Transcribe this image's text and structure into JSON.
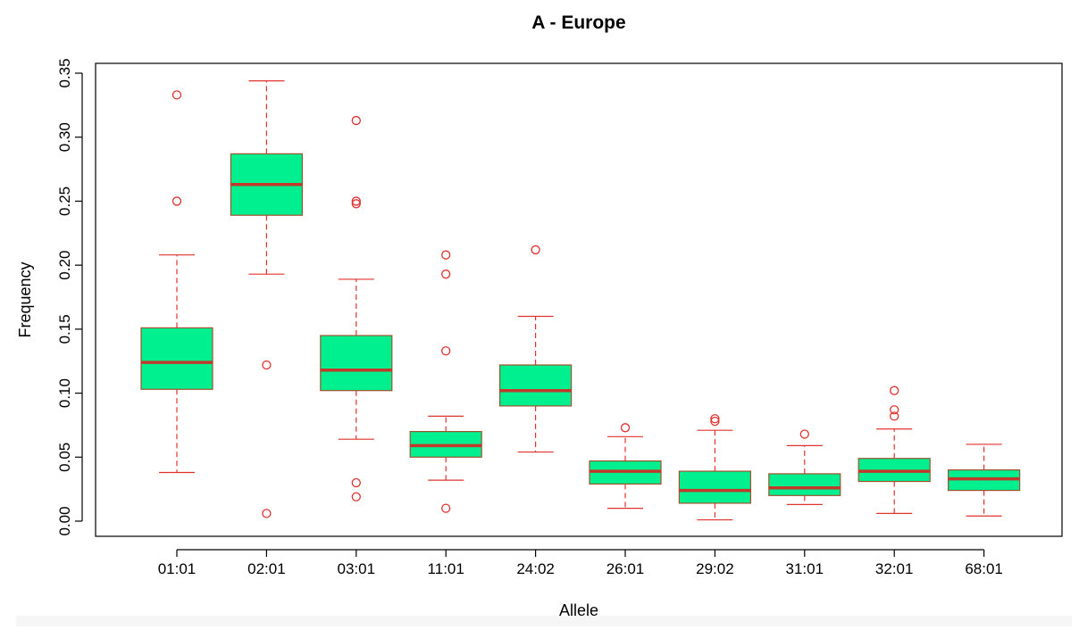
{
  "chart_data": {
    "type": "box",
    "title": "A - Europe",
    "xlabel": "Allele",
    "ylabel": "Frequency",
    "ylim": [
      -0.01,
      0.355
    ],
    "yticks": [
      "0.00",
      "0.05",
      "0.10",
      "0.15",
      "0.20",
      "0.25",
      "0.30",
      "0.35"
    ],
    "categories": [
      "01:01",
      "02:01",
      "03:01",
      "11:01",
      "24:02",
      "26:01",
      "29:02",
      "31:01",
      "32:01",
      "68:01"
    ],
    "boxes": [
      {
        "lower_whisker": 0.038,
        "q1": 0.103,
        "median": 0.124,
        "q3": 0.151,
        "upper_whisker": 0.208,
        "outliers": [
          0.25,
          0.333
        ]
      },
      {
        "lower_whisker": 0.193,
        "q1": 0.239,
        "median": 0.263,
        "q3": 0.287,
        "upper_whisker": 0.344,
        "outliers": [
          0.006,
          0.122
        ]
      },
      {
        "lower_whisker": 0.064,
        "q1": 0.102,
        "median": 0.118,
        "q3": 0.145,
        "upper_whisker": 0.189,
        "outliers": [
          0.019,
          0.03,
          0.248,
          0.25,
          0.313
        ]
      },
      {
        "lower_whisker": 0.032,
        "q1": 0.05,
        "median": 0.059,
        "q3": 0.07,
        "upper_whisker": 0.082,
        "outliers": [
          0.01,
          0.133,
          0.193,
          0.208
        ]
      },
      {
        "lower_whisker": 0.054,
        "q1": 0.09,
        "median": 0.102,
        "q3": 0.122,
        "upper_whisker": 0.16,
        "outliers": [
          0.212
        ]
      },
      {
        "lower_whisker": 0.01,
        "q1": 0.029,
        "median": 0.039,
        "q3": 0.047,
        "upper_whisker": 0.066,
        "outliers": [
          0.073
        ]
      },
      {
        "lower_whisker": 0.001,
        "q1": 0.014,
        "median": 0.024,
        "q3": 0.039,
        "upper_whisker": 0.071,
        "outliers": [
          0.078,
          0.08
        ]
      },
      {
        "lower_whisker": 0.013,
        "q1": 0.02,
        "median": 0.026,
        "q3": 0.037,
        "upper_whisker": 0.059,
        "outliers": [
          0.068
        ]
      },
      {
        "lower_whisker": 0.006,
        "q1": 0.031,
        "median": 0.039,
        "q3": 0.049,
        "upper_whisker": 0.072,
        "outliers": [
          0.082,
          0.087,
          0.102
        ]
      },
      {
        "lower_whisker": 0.004,
        "q1": 0.024,
        "median": 0.033,
        "q3": 0.04,
        "upper_whisker": 0.06,
        "outliers": []
      }
    ],
    "colors": {
      "box_fill": "#00f08f",
      "box_border": "#a0522d",
      "median": "#c0392b",
      "whisker": "#e0322e",
      "outlier": "#e0322e",
      "axis": "#000000"
    },
    "grid": false,
    "legend": "none"
  }
}
